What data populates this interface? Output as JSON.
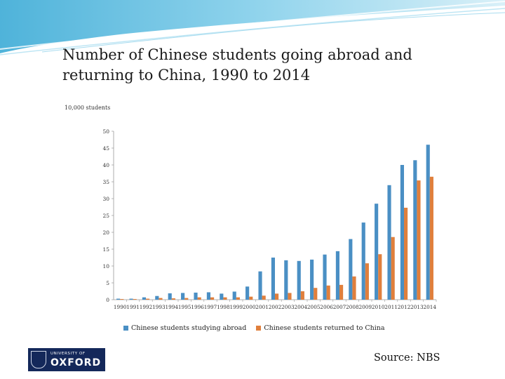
{
  "slide": {
    "title": "Number of Chinese students going abroad and returning to China, 1990 to 2014",
    "unit_label": "10,000 students",
    "source": "Source: NBS",
    "logo": {
      "small_text": "UNIVERSITY OF",
      "big_text": "OXFORD"
    },
    "accent_color": "#5bbfe0"
  },
  "chart_data": {
    "type": "bar",
    "title": "Number of Chinese students going abroad and returning to China, 1990 to 2014",
    "ylabel": "10,000 students",
    "xlabel": "",
    "ylim": [
      0,
      50
    ],
    "yticks": [
      0,
      5,
      10,
      15,
      20,
      25,
      30,
      35,
      40,
      45,
      50
    ],
    "grid": false,
    "legend_position": "bottom",
    "categories": [
      "1990",
      "1991",
      "1992",
      "1993",
      "1994",
      "1995",
      "1996",
      "1997",
      "1998",
      "1999",
      "2000",
      "2001",
      "2002",
      "2003",
      "2004",
      "2005",
      "2006",
      "2007",
      "2008",
      "2009",
      "2010",
      "2011",
      "2012",
      "2013",
      "2014"
    ],
    "series": [
      {
        "name": "Chinese students studying abroad",
        "color": "#4a8fc4",
        "values": [
          0.3,
          0.3,
          0.7,
          1.1,
          1.9,
          2.0,
          2.1,
          2.2,
          1.8,
          2.4,
          3.9,
          8.4,
          12.5,
          11.7,
          11.5,
          11.9,
          13.4,
          14.4,
          18.0,
          22.9,
          28.5,
          34.0,
          40.0,
          41.4,
          46.0
        ]
      },
      {
        "name": "Chinese students returned to China",
        "color": "#e07f3c",
        "values": [
          0.2,
          0.2,
          0.3,
          0.5,
          0.4,
          0.5,
          0.7,
          0.7,
          0.7,
          0.7,
          0.9,
          1.2,
          1.8,
          2.0,
          2.5,
          3.5,
          4.2,
          4.4,
          6.9,
          10.8,
          13.5,
          18.6,
          27.3,
          35.4,
          36.5
        ]
      }
    ]
  }
}
